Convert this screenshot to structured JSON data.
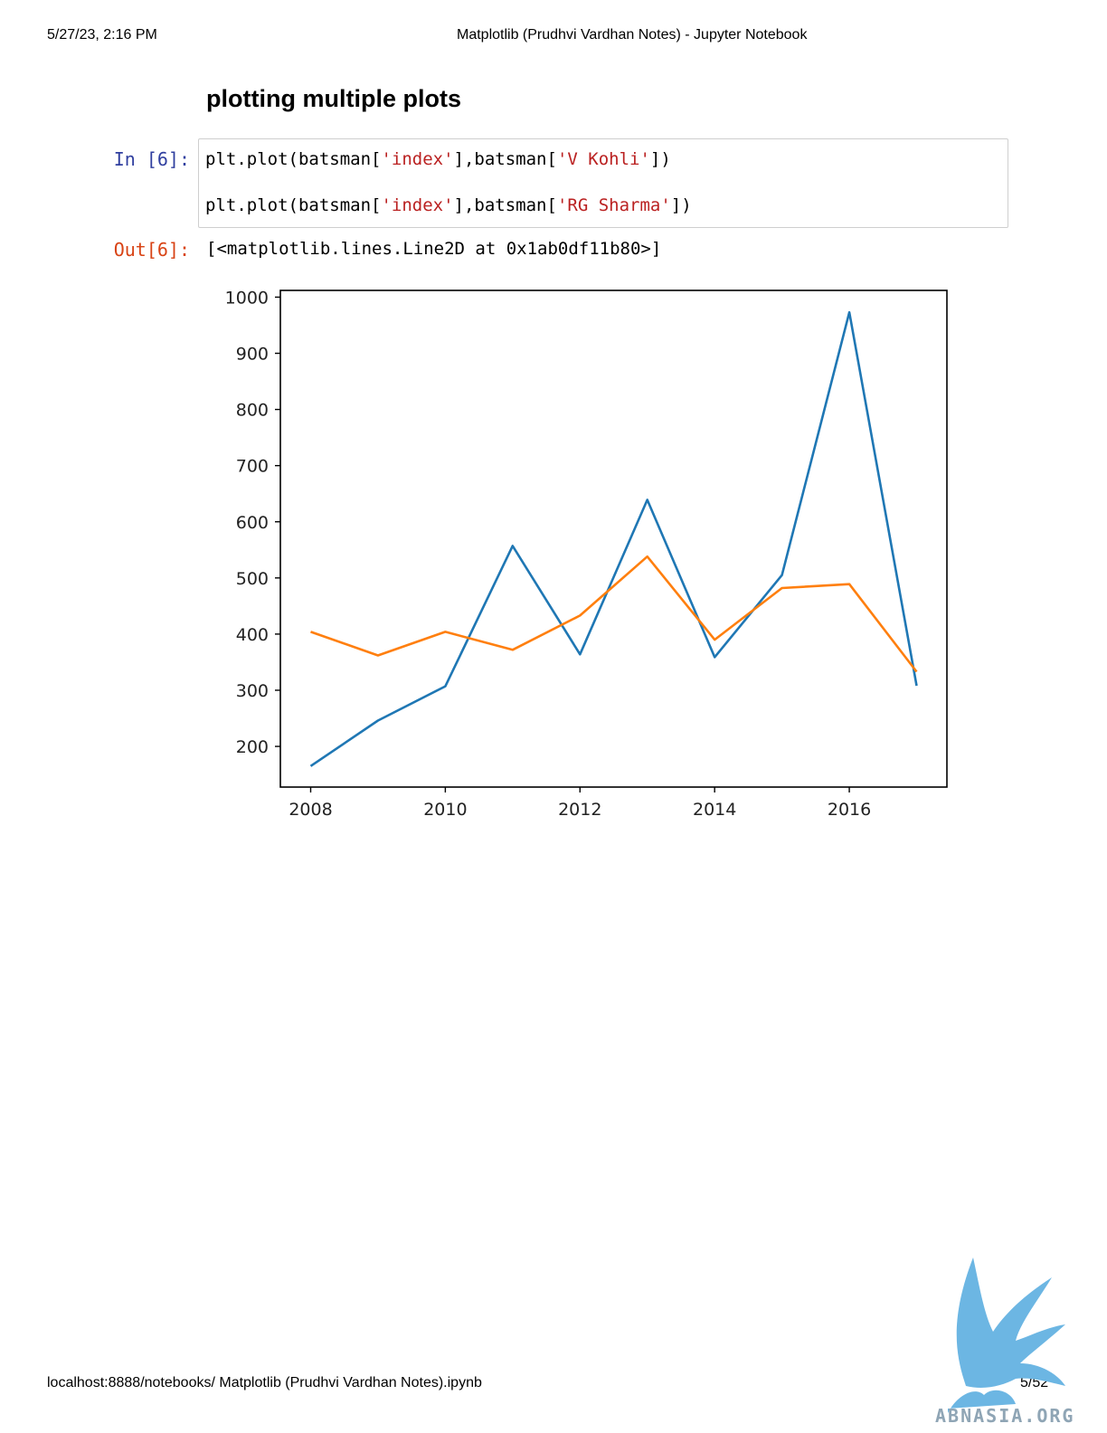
{
  "print_header": {
    "datetime": "5/27/23, 2:16 PM",
    "title": "Matplotlib (Prudhvi Vardhan Notes) - Jupyter Notebook"
  },
  "heading": "plotting multiple plots",
  "cell": {
    "in_prompt": "In [6]:",
    "out_prompt": "Out[6]:",
    "code_lines": [
      [
        {
          "t": "plt.plot(batsman[",
          "c": "plain"
        },
        {
          "t": "'index'",
          "c": "str"
        },
        {
          "t": "],batsman[",
          "c": "plain"
        },
        {
          "t": "'V Kohli'",
          "c": "str"
        },
        {
          "t": "])",
          "c": "plain"
        }
      ],
      [
        {
          "t": "plt.plot(batsman[",
          "c": "plain"
        },
        {
          "t": "'index'",
          "c": "str"
        },
        {
          "t": "],batsman[",
          "c": "plain"
        },
        {
          "t": "'RG Sharma'",
          "c": "str"
        },
        {
          "t": "])",
          "c": "plain"
        }
      ]
    ],
    "output_text": "[<matplotlib.lines.Line2D at 0x1ab0df11b80>]"
  },
  "chart_data": {
    "type": "line",
    "x": [
      2008,
      2009,
      2010,
      2011,
      2012,
      2013,
      2014,
      2015,
      2016,
      2017
    ],
    "series": [
      {
        "values": [
          165,
          246,
          307,
          557,
          364,
          639,
          359,
          505,
          973,
          308
        ],
        "color": "#1f77b4"
      },
      {
        "values": [
          404,
          362,
          404,
          372,
          433,
          538,
          390,
          482,
          489,
          333
        ],
        "color": "#ff7f0e"
      }
    ],
    "xticks": [
      2008,
      2010,
      2012,
      2014,
      2016
    ],
    "yticks": [
      200,
      300,
      400,
      500,
      600,
      700,
      800,
      900,
      1000
    ],
    "xlim": [
      2007.55,
      2017.45
    ],
    "ylim": [
      127.6,
      1012
    ],
    "grid": false,
    "title": "",
    "xlabel": "",
    "ylabel": ""
  },
  "footer": {
    "url": "localhost:8888/notebooks/ Matplotlib (Prudhvi Vardhan Notes).ipynb",
    "page": "5/52"
  },
  "watermark": {
    "text": "ABNASIA.ORG",
    "icon": "griffin-logo-icon",
    "color": "#6cb6e3"
  }
}
